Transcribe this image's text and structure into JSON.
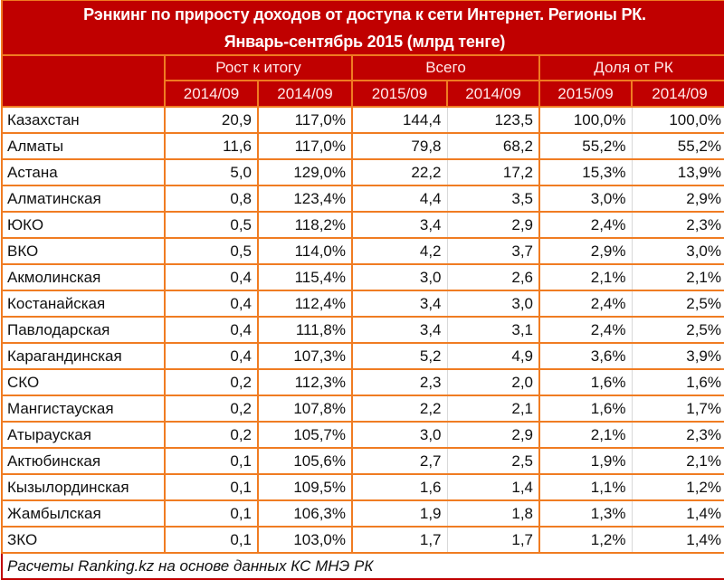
{
  "title": {
    "line1": "Рэнкинг по приросту доходов от доступа к сети Интернет. Регионы РК.",
    "line2": "Январь-сентябрь 2015 (млрд тенге)"
  },
  "headers": {
    "groups": [
      {
        "label": "Рост к итогу",
        "span": 2
      },
      {
        "label": "Всего",
        "span": 2
      },
      {
        "label": "Доля от РК",
        "span": 2
      }
    ],
    "sub": [
      "2014/09",
      "2014/09",
      "2015/09",
      "2014/09",
      "2015/09",
      "2014/09"
    ]
  },
  "rows": [
    {
      "region": "Казахстан",
      "v": [
        "20,9",
        "117,0%",
        "144,4",
        "123,5",
        "100,0%",
        "100,0%"
      ]
    },
    {
      "region": "Алматы",
      "v": [
        "11,6",
        "117,0%",
        "79,8",
        "68,2",
        "55,2%",
        "55,2%"
      ]
    },
    {
      "region": "Астана",
      "v": [
        "5,0",
        "129,0%",
        "22,2",
        "17,2",
        "15,3%",
        "13,9%"
      ]
    },
    {
      "region": "Алматинская",
      "v": [
        "0,8",
        "123,4%",
        "4,4",
        "3,5",
        "3,0%",
        "2,9%"
      ]
    },
    {
      "region": "ЮКО",
      "v": [
        "0,5",
        "118,2%",
        "3,4",
        "2,9",
        "2,4%",
        "2,3%"
      ]
    },
    {
      "region": "ВКО",
      "v": [
        "0,5",
        "114,0%",
        "4,2",
        "3,7",
        "2,9%",
        "3,0%"
      ]
    },
    {
      "region": "Акмолинская",
      "v": [
        "0,4",
        "115,4%",
        "3,0",
        "2,6",
        "2,1%",
        "2,1%"
      ]
    },
    {
      "region": "Костанайская",
      "v": [
        "0,4",
        "112,4%",
        "3,4",
        "3,0",
        "2,4%",
        "2,5%"
      ]
    },
    {
      "region": "Павлодарская",
      "v": [
        "0,4",
        "111,8%",
        "3,4",
        "3,1",
        "2,4%",
        "2,5%"
      ]
    },
    {
      "region": "Карагандинская",
      "v": [
        "0,4",
        "107,3%",
        "5,2",
        "4,9",
        "3,6%",
        "3,9%"
      ]
    },
    {
      "region": "СКО",
      "v": [
        "0,2",
        "112,3%",
        "2,3",
        "2,0",
        "1,6%",
        "1,6%"
      ]
    },
    {
      "region": "Мангистауская",
      "v": [
        "0,2",
        "107,8%",
        "2,2",
        "2,1",
        "1,6%",
        "1,7%"
      ]
    },
    {
      "region": "Атырауская",
      "v": [
        "0,2",
        "105,7%",
        "3,0",
        "2,9",
        "2,1%",
        "2,3%"
      ]
    },
    {
      "region": "Актюбинская",
      "v": [
        "0,1",
        "105,6%",
        "2,7",
        "2,5",
        "1,9%",
        "2,1%"
      ]
    },
    {
      "region": "Кызылординская",
      "v": [
        "0,1",
        "109,5%",
        "1,6",
        "1,4",
        "1,1%",
        "1,2%"
      ]
    },
    {
      "region": "Жамбылская",
      "v": [
        "0,1",
        "106,3%",
        "1,9",
        "1,8",
        "1,3%",
        "1,4%"
      ]
    },
    {
      "region": "ЗКО",
      "v": [
        "0,1",
        "103,0%",
        "1,7",
        "1,7",
        "1,2%",
        "1,4%"
      ]
    }
  ],
  "footer": "Расчеты Ranking.kz на основе данных КС МНЭ РК",
  "colors": {
    "header_bg": "#c00000",
    "grid_orange": "#f07c22",
    "inner_grid_gray": "#d9d9d9",
    "header_text": "#ffffff"
  }
}
